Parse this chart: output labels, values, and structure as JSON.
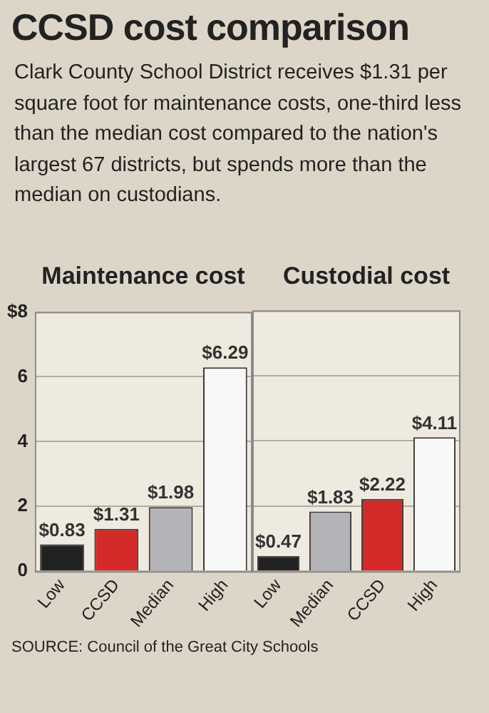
{
  "chart_data": [
    {
      "type": "bar",
      "title": "Maintenance cost",
      "annotations": [
        "CCSD cost comparison",
        "Clark County School District receives $1.31 per square foot for maintenance costs, one-third less than the median cost compared to the nation's largest 67 districts, but spends more than the median on custodians."
      ],
      "categories": [
        "Low",
        "CCSD",
        "Median",
        "High"
      ],
      "values": [
        0.83,
        1.31,
        1.98,
        6.29
      ],
      "colors": [
        "#222222",
        "#d42a2a",
        "#b4b4b8",
        "#f8f8f6"
      ],
      "value_labels": [
        "$0.83",
        "$1.31",
        "$1.98",
        "$6.29"
      ],
      "ylim": [
        0,
        8
      ],
      "yticks": [
        0,
        2,
        4,
        6,
        {
          "value": 8,
          "label": "$8"
        }
      ],
      "grid": "y"
    },
    {
      "type": "bar",
      "title": "Custodial cost",
      "annotations": [
        "SOURCE: Council of the Great City Schools"
      ],
      "categories": [
        "Low",
        "Median",
        "CCSD",
        "High"
      ],
      "values": [
        0.47,
        1.83,
        2.22,
        4.11
      ],
      "colors": [
        "#222222",
        "#b4b4b8",
        "#d42a2a",
        "#f8f8f6"
      ],
      "value_labels": [
        "$0.47",
        "$1.83",
        "$2.22",
        "$4.11"
      ],
      "ylim": [
        0,
        8
      ],
      "yticks": [
        0,
        2,
        4,
        6,
        8
      ],
      "grid": "y",
      "tick_labels": "x"
    }
  ]
}
